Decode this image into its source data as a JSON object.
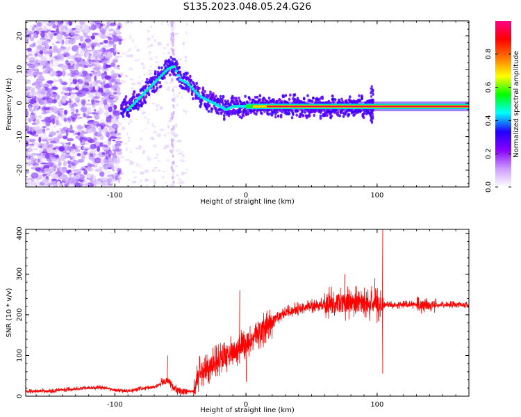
{
  "title": "S135.2023.048.05.24.G26",
  "chart_data": [
    {
      "type": "heatmap",
      "xlabel": "Height of straight line (km)",
      "ylabel": "Frequency (Hz)",
      "xlim": [
        -168,
        170
      ],
      "ylim": [
        -25,
        24.5
      ],
      "x_ticks": [
        -100,
        0,
        100
      ],
      "y_ticks": [
        -20,
        -10,
        0,
        10,
        20
      ],
      "colorbar": {
        "label": "Normalized spectral amplitude",
        "range": [
          0,
          1
        ],
        "ticks": [
          0.0,
          0.2,
          0.4,
          0.6,
          0.8
        ],
        "colors": [
          "#ffffff",
          "#cc99ff",
          "#8800ff",
          "#2200ff",
          "#00ffff",
          "#00ff00",
          "#ffff00",
          "#ff7700",
          "#ff0000",
          "#ff0088"
        ]
      },
      "ridge": {
        "x": [
          -90,
          -80,
          -70,
          -60,
          -55,
          -50,
          -45,
          -40,
          -35,
          -30,
          -25,
          -20,
          -15,
          -10,
          -5,
          0,
          20,
          40,
          60,
          80,
          95,
          100,
          140,
          170
        ],
        "y": [
          -2,
          2,
          6,
          10,
          11,
          7,
          6,
          4,
          2,
          1,
          0,
          -1,
          -2,
          -1,
          -1,
          -1,
          -1,
          -1,
          -1,
          -1,
          -1,
          -1,
          -1,
          -1
        ]
      },
      "bright_line": {
        "x_start": 0,
        "x_end": 170,
        "y": -1
      }
    },
    {
      "type": "line",
      "xlabel": "Height of straight line (km)",
      "ylabel": "SNR (10 * v/v)",
      "xlim": [
        -168,
        170
      ],
      "ylim": [
        0,
        410
      ],
      "x_ticks": [
        -100,
        0,
        100
      ],
      "y_ticks": [
        0,
        100,
        200,
        300,
        400
      ],
      "color": "#ff0000",
      "trend": {
        "x": [
          -168,
          -150,
          -130,
          -110,
          -100,
          -90,
          -80,
          -70,
          -60,
          -55,
          -50,
          -45,
          -40,
          -35,
          -30,
          -20,
          -10,
          0,
          10,
          20,
          30,
          40,
          50,
          60,
          70,
          80,
          90,
          100,
          110,
          120,
          130,
          140,
          150,
          160,
          170
        ],
        "y": [
          12,
          13,
          18,
          22,
          15,
          12,
          18,
          22,
          40,
          20,
          12,
          12,
          12,
          60,
          70,
          90,
          110,
          130,
          155,
          185,
          205,
          215,
          222,
          225,
          228,
          230,
          228,
          225,
          224,
          225,
          225,
          222,
          225,
          225,
          225
        ]
      },
      "spikes": [
        {
          "x": -60,
          "y": 100
        },
        {
          "x": -5,
          "y": 260
        },
        {
          "x": 0,
          "y": 35
        },
        {
          "x": 75,
          "y": 300
        },
        {
          "x": 98,
          "y": 290
        },
        {
          "x": 104,
          "y": 410
        },
        {
          "x": 104,
          "y": 55
        }
      ]
    }
  ]
}
